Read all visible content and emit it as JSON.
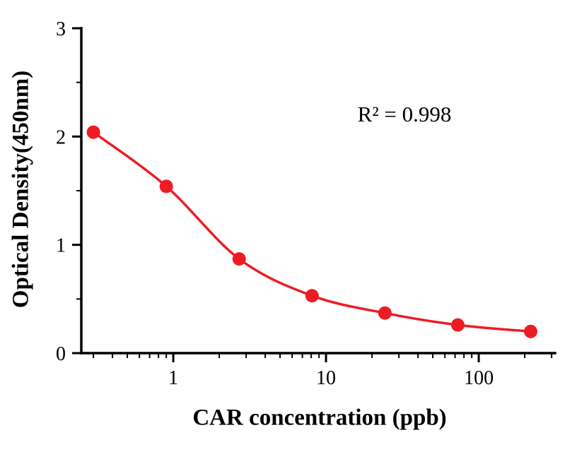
{
  "chart_data": {
    "type": "scatter",
    "subtype": "scatter-with-fit-line",
    "title": "",
    "xlabel": "CAR concentration (ppb)",
    "ylabel": "Optical Density(450nm)",
    "annotation": "R² = 0.998",
    "x_scale": "log",
    "x_domain": [
      0.25,
      316
    ],
    "y_domain": [
      0,
      3
    ],
    "x_major_ticks": [
      1,
      10,
      100
    ],
    "x_major_tick_labels": [
      "1",
      "10",
      "100"
    ],
    "y_major_ticks": [
      0,
      1,
      2,
      3
    ],
    "y_major_tick_labels": [
      "0",
      "1",
      "2",
      "3"
    ],
    "y_minor_ticks": [
      0.5,
      1.5,
      2.5
    ],
    "grid": false,
    "legend": "none",
    "points": {
      "x": [
        0.3,
        0.9,
        2.7,
        8.1,
        24.3,
        72.9,
        218.7
      ],
      "y": [
        2.04,
        1.54,
        0.87,
        0.53,
        0.37,
        0.26,
        0.2
      ]
    },
    "series_color": "#ed1c24",
    "axis_color": "#000000"
  }
}
